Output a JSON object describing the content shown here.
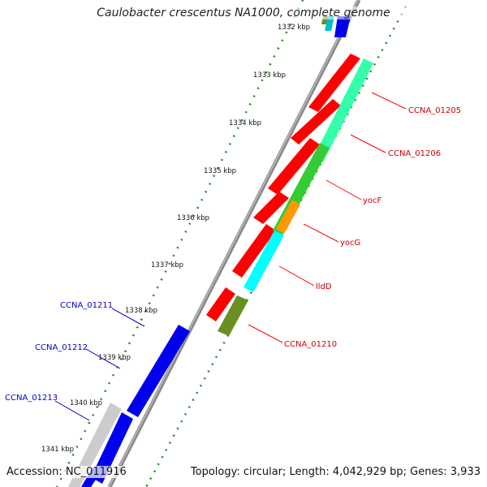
{
  "title": "Caulobacter crescentus NA1000, complete genome",
  "footer": {
    "accession": "Accession: NC_011916",
    "info": "Topology: circular; Length: 4,042,929 bp; Genes: 3,933"
  },
  "ticks": [
    "1332 kbp",
    "1333 kbp",
    "1334 kbp",
    "1335 kbp",
    "1336 kbp",
    "1337 kbp",
    "1338 kbp",
    "1339 kbp",
    "1340 kbp",
    "1341 kbp"
  ],
  "gene_labels_right": [
    "CCNA_01205",
    "CCNA_01206",
    "yocF",
    "yocG",
    "lldD",
    "CCNA_01210"
  ],
  "gene_labels_left": [
    "CCNA_01211",
    "CCNA_01212",
    "CCNA_01213"
  ],
  "colors": {
    "forward_label": "#cc0000",
    "reverse_label": "#0000cc",
    "red": "#ff0000",
    "blue": "#0000ee",
    "green": "#33cc33",
    "spring_green": "#33ffaa",
    "orange": "#ff9900",
    "cyan": "#00ffff",
    "olive": "#6b8e23",
    "grey": "#cccccc",
    "backbone": "#777777",
    "dots": "#228b22"
  }
}
